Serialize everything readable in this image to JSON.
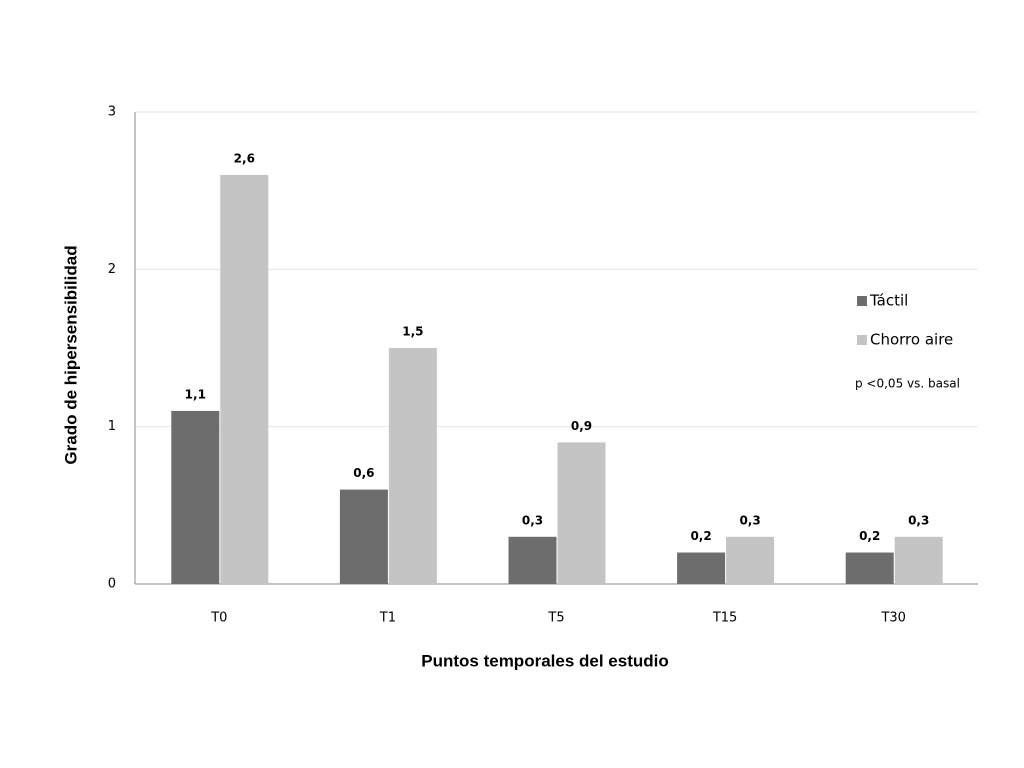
{
  "chart_data": {
    "type": "bar",
    "x_label": "Puntos temporales del estudio",
    "y_label": "Grado de hipersensibilidad",
    "annotation": "p <0,05 vs. basal",
    "categories": [
      "T0",
      "T1",
      "T5",
      "T15",
      "T30"
    ],
    "series": [
      {
        "name": "Táctil",
        "color": "#6d6d6d",
        "values": [
          1.1,
          0.6,
          0.3,
          0.2,
          0.2
        ],
        "value_labels": [
          "1,1",
          "0,6",
          "0,3",
          "0,2",
          "0,2"
        ]
      },
      {
        "name": "Chorro aire",
        "color": "#c4c4c4",
        "values": [
          2.6,
          1.5,
          0.9,
          0.3,
          0.3
        ],
        "value_labels": [
          "2,6",
          "1,5",
          "0,9",
          "0,3",
          "0,3"
        ]
      }
    ],
    "ylim": [
      0,
      3
    ],
    "yticks": [
      0,
      1,
      2,
      3
    ],
    "grid": true,
    "legend": "right"
  }
}
